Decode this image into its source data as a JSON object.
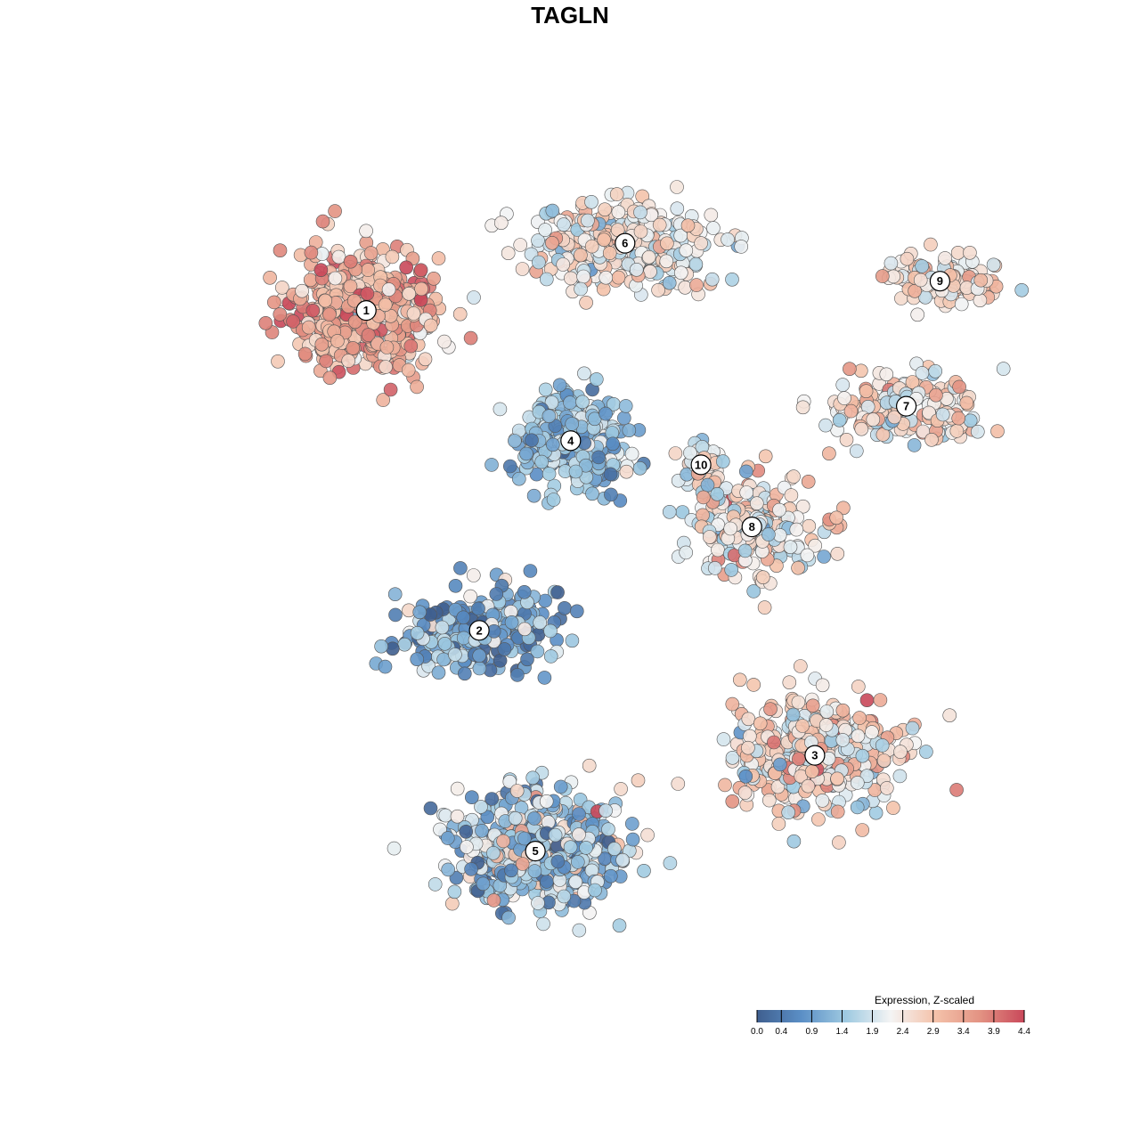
{
  "chart_data": {
    "type": "scatter",
    "title": "TAGLN",
    "xlabel": "",
    "ylabel": "",
    "grid": false,
    "axes_visible": false,
    "legend": {
      "title": "Expression, Z-scaled",
      "placement": "bottom-right",
      "ticks": [
        "0.0",
        "0.4",
        "0.9",
        "1.4",
        "1.9",
        "2.4",
        "2.9",
        "3.4",
        "3.9",
        "4.4"
      ],
      "range": [
        0.0,
        4.4
      ],
      "colors": [
        "#3f5f8f",
        "#5b8fc6",
        "#9fcae1",
        "#f4f4f4",
        "#f4c2aa",
        "#e39383",
        "#c9485a"
      ]
    },
    "point_style": {
      "stroke": "#555555",
      "opacity": 0.9
    },
    "clusters": [
      {
        "id": "1",
        "label": "1",
        "center": [
          -26.2,
          19.1
        ],
        "spread": [
          7.5,
          6.5
        ],
        "mean_expr": 3.2,
        "sd_expr": 0.6
      },
      {
        "id": "2",
        "label": "2",
        "center": [
          -13.1,
          -18.0
        ],
        "spread": [
          8.0,
          4.5
        ],
        "mean_expr": 1.0,
        "sd_expr": 0.7
      },
      {
        "id": "3",
        "label": "3",
        "center": [
          25.8,
          -32.5
        ],
        "spread": [
          9.0,
          6.0
        ],
        "mean_expr": 2.6,
        "sd_expr": 0.7
      },
      {
        "id": "4",
        "label": "4",
        "center": [
          -2.5,
          4.0
        ],
        "spread": [
          5.5,
          5.0
        ],
        "mean_expr": 1.3,
        "sd_expr": 0.5
      },
      {
        "id": "5",
        "label": "5",
        "center": [
          -6.6,
          -43.6
        ],
        "spread": [
          9.0,
          6.0
        ],
        "mean_expr": 1.5,
        "sd_expr": 0.8
      },
      {
        "id": "6",
        "label": "6",
        "center": [
          3.8,
          26.9
        ],
        "spread": [
          10.0,
          4.5
        ],
        "mean_expr": 2.3,
        "sd_expr": 0.5
      },
      {
        "id": "7",
        "label": "7",
        "center": [
          36.4,
          8.0
        ],
        "spread": [
          8.0,
          3.5
        ],
        "mean_expr": 2.6,
        "sd_expr": 0.6
      },
      {
        "id": "8",
        "label": "8",
        "center": [
          18.5,
          -6.0
        ],
        "spread": [
          7.0,
          5.0
        ],
        "mean_expr": 2.4,
        "sd_expr": 0.7
      },
      {
        "id": "9",
        "label": "9",
        "center": [
          40.3,
          22.5
        ],
        "spread": [
          5.5,
          2.5
        ],
        "mean_expr": 2.7,
        "sd_expr": 0.5
      },
      {
        "id": "10",
        "label": "10",
        "center": [
          12.6,
          1.2
        ],
        "spread": [
          2.0,
          2.5
        ],
        "mean_expr": 2.3,
        "sd_expr": 0.6
      }
    ],
    "xlim": [
      -48,
      48
    ],
    "ylim": [
      -58,
      36
    ]
  }
}
